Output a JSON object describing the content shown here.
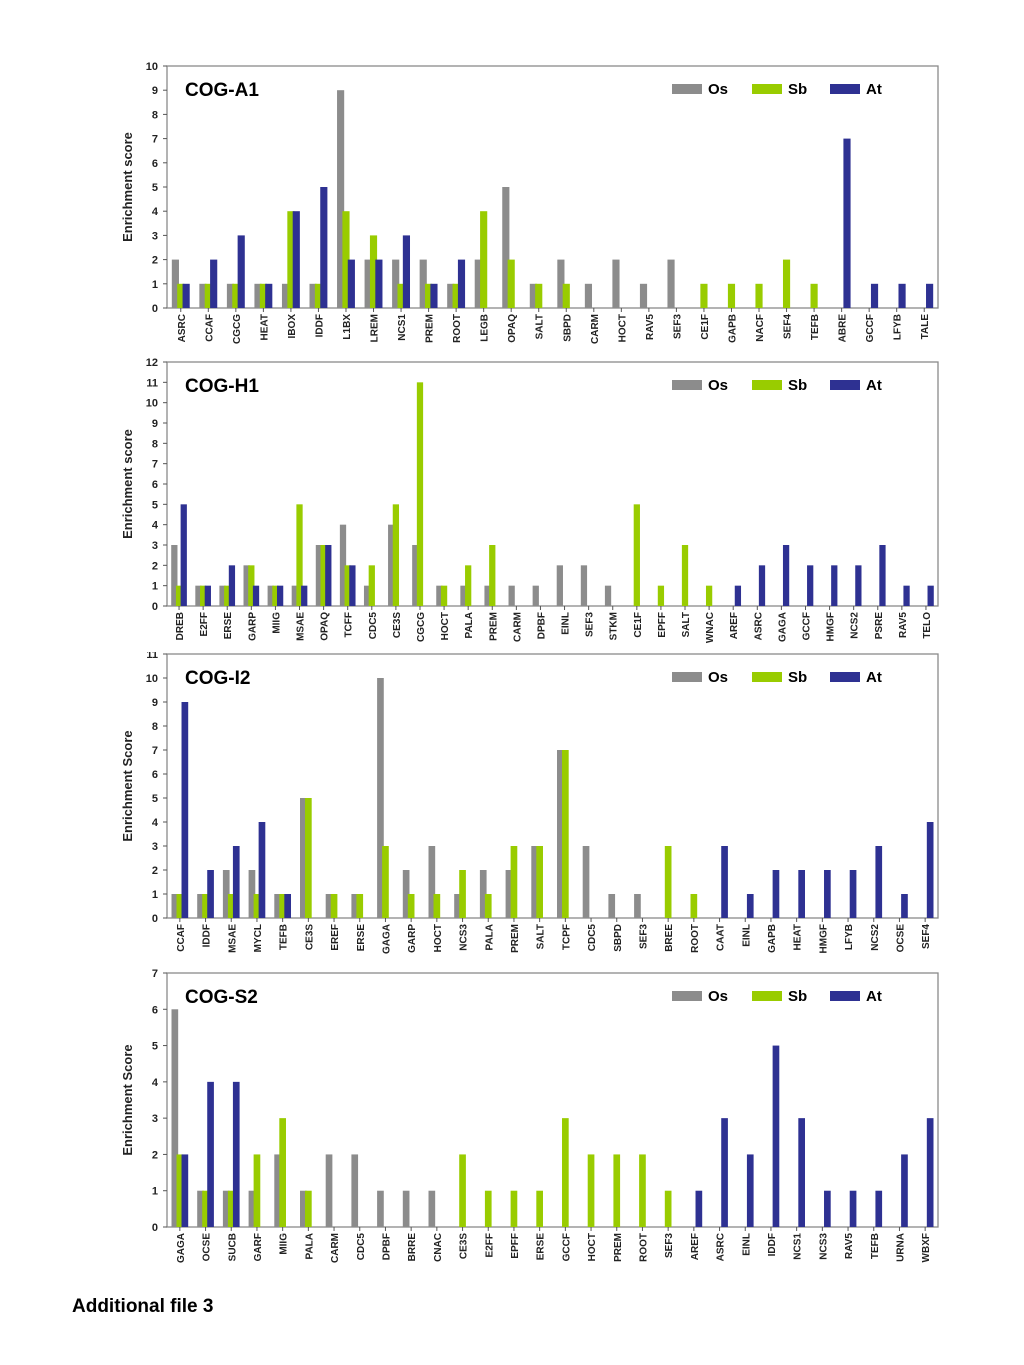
{
  "series_names": [
    "Os",
    "Sb",
    "At"
  ],
  "colors": {
    "Os": "#8c8c8c",
    "Sb": "#99cc00",
    "At": "#2e3192"
  },
  "footer": {
    "caption": "Additional file 3"
  },
  "chart_data": [
    {
      "type": "bar",
      "title": "COG-A1",
      "ylabel": "Enrichment score",
      "xlabel": "",
      "ylim": [
        0,
        10
      ],
      "grid": false,
      "legend": "top-right",
      "categories": [
        "ASRC",
        "CCAF",
        "CGCG",
        "HEAT",
        "IBOX",
        "IDDF",
        "L1BX",
        "LREM",
        "NCS1",
        "PREM",
        "ROOT",
        "LEGB",
        "OPAQ",
        "SALT",
        "SBPD",
        "CARM",
        "HOCT",
        "RAV5",
        "SEF3",
        "CE1F",
        "GAPB",
        "NACF",
        "SEF4",
        "TEFB",
        "ABRE",
        "GCCF",
        "LFYB",
        "TALE"
      ],
      "series": [
        {
          "name": "Os",
          "values": [
            2,
            1,
            1,
            1,
            1,
            1,
            9,
            2,
            2,
            2,
            1,
            2,
            5,
            1,
            2,
            1,
            2,
            1,
            2,
            0,
            0,
            0,
            0,
            0,
            0,
            0,
            0,
            0
          ]
        },
        {
          "name": "Sb",
          "values": [
            1,
            1,
            1,
            1,
            4,
            1,
            4,
            3,
            1,
            1,
            1,
            4,
            2,
            1,
            1,
            0,
            0,
            0,
            0,
            1,
            1,
            1,
            2,
            1,
            0,
            0,
            0,
            0
          ]
        },
        {
          "name": "At",
          "values": [
            1,
            2,
            3,
            1,
            4,
            5,
            2,
            2,
            3,
            1,
            2,
            0,
            0,
            0,
            0,
            0,
            0,
            0,
            0,
            0,
            0,
            0,
            0,
            0,
            7,
            1,
            1,
            1
          ]
        }
      ]
    },
    {
      "type": "bar",
      "title": "COG-H1",
      "ylabel": "Enrichment score",
      "xlabel": "",
      "ylim": [
        0,
        12
      ],
      "grid": false,
      "legend": "top-right",
      "categories": [
        "DREB",
        "E2FF",
        "ERSE",
        "GARP",
        "MIIG",
        "MSAE",
        "OPAQ",
        "TCFF",
        "CDC5",
        "CE3S",
        "CGCG",
        "HOCT",
        "PALA",
        "PREM",
        "CARM",
        "DPBF",
        "EINL",
        "SEF3",
        "STKM",
        "CE1F",
        "EPFF",
        "SALT",
        "WNAC",
        "AREF",
        "ASRC",
        "GAGA",
        "GCCF",
        "HMGF",
        "NCS2",
        "PSRE",
        "RAV5",
        "TELO"
      ],
      "series": [
        {
          "name": "Os",
          "values": [
            3,
            1,
            1,
            2,
            1,
            1,
            3,
            4,
            1,
            4,
            3,
            1,
            1,
            1,
            1,
            1,
            2,
            2,
            1,
            0,
            0,
            0,
            0,
            0,
            0,
            0,
            0,
            0,
            0,
            0,
            0,
            0
          ]
        },
        {
          "name": "Sb",
          "values": [
            1,
            1,
            1,
            2,
            1,
            5,
            3,
            2,
            2,
            5,
            11,
            1,
            2,
            3,
            0,
            0,
            0,
            0,
            0,
            5,
            1,
            3,
            1,
            0,
            0,
            0,
            0,
            0,
            0,
            0,
            0,
            0
          ]
        },
        {
          "name": "At",
          "values": [
            5,
            1,
            2,
            1,
            1,
            1,
            3,
            2,
            0,
            0,
            0,
            0,
            0,
            0,
            0,
            0,
            0,
            0,
            0,
            0,
            0,
            0,
            0,
            1,
            2,
            3,
            2,
            2,
            2,
            3,
            1,
            1
          ]
        }
      ]
    },
    {
      "type": "bar",
      "title": "COG-I2",
      "ylabel": "Enrichment Score",
      "xlabel": "",
      "ylim": [
        0,
        11
      ],
      "grid": false,
      "legend": "top-right",
      "categories": [
        "CCAF",
        "IDDF",
        "MSAE",
        "MYCL",
        "TEFB",
        "CE3S",
        "EREF",
        "ERSE",
        "GAGA",
        "GARP",
        "HOCT",
        "NCS3",
        "PALA",
        "PREM",
        "SALT",
        "TCPF",
        "CDC5",
        "SBPD",
        "SEF3",
        "BREE",
        "ROOT",
        "CAAT",
        "EINL",
        "GAPB",
        "HEAT",
        "HMGF",
        "LFYB",
        "NCS2",
        "OCSE",
        "SEF4"
      ],
      "series": [
        {
          "name": "Os",
          "values": [
            1,
            1,
            2,
            2,
            1,
            5,
            1,
            1,
            10,
            2,
            3,
            1,
            2,
            2,
            3,
            7,
            3,
            1,
            1,
            0,
            0,
            0,
            0,
            0,
            0,
            0,
            0,
            0,
            0,
            0
          ]
        },
        {
          "name": "Sb",
          "values": [
            1,
            1,
            1,
            1,
            1,
            5,
            1,
            1,
            3,
            1,
            1,
            2,
            1,
            3,
            3,
            7,
            0,
            0,
            0,
            3,
            1,
            0,
            0,
            0,
            0,
            0,
            0,
            0,
            0,
            0
          ]
        },
        {
          "name": "At",
          "values": [
            9,
            2,
            3,
            4,
            1,
            0,
            0,
            0,
            0,
            0,
            0,
            0,
            0,
            0,
            0,
            0,
            0,
            0,
            0,
            0,
            0,
            3,
            1,
            2,
            2,
            2,
            2,
            3,
            1,
            4
          ]
        }
      ]
    },
    {
      "type": "bar",
      "title": "COG-S2",
      "ylabel": "Enrichment Score",
      "xlabel": "",
      "ylim": [
        0,
        7
      ],
      "grid": false,
      "legend": "top-right",
      "categories": [
        "GAGA",
        "OCSE",
        "SUCB",
        "GARF",
        "MIIG",
        "PALA",
        "CARM",
        "CDC5",
        "DPBF",
        "BRRE",
        "CNAC",
        "CE3S",
        "E2FF",
        "EPFF",
        "ERSE",
        "GCCF",
        "HOCT",
        "PREM",
        "ROOT",
        "SEF3",
        "AREF",
        "ASRC",
        "EINL",
        "IDDF",
        "NCS1",
        "NCS3",
        "RAV5",
        "TEFB",
        "URNA",
        "WBXF"
      ],
      "series": [
        {
          "name": "Os",
          "values": [
            6,
            1,
            1,
            1,
            2,
            1,
            2,
            2,
            1,
            1,
            1,
            0,
            0,
            0,
            0,
            0,
            0,
            0,
            0,
            0,
            0,
            0,
            0,
            0,
            0,
            0,
            0,
            0,
            0,
            0
          ]
        },
        {
          "name": "Sb",
          "values": [
            2,
            1,
            1,
            2,
            3,
            1,
            0,
            0,
            0,
            0,
            0,
            2,
            1,
            1,
            1,
            3,
            2,
            2,
            2,
            1,
            0,
            0,
            0,
            0,
            0,
            0,
            0,
            0,
            0,
            0
          ]
        },
        {
          "name": "At",
          "values": [
            2,
            4,
            4,
            0,
            0,
            0,
            0,
            0,
            0,
            0,
            0,
            0,
            0,
            0,
            0,
            0,
            0,
            0,
            0,
            0,
            1,
            3,
            2,
            5,
            3,
            1,
            1,
            1,
            2,
            3
          ]
        }
      ]
    }
  ]
}
